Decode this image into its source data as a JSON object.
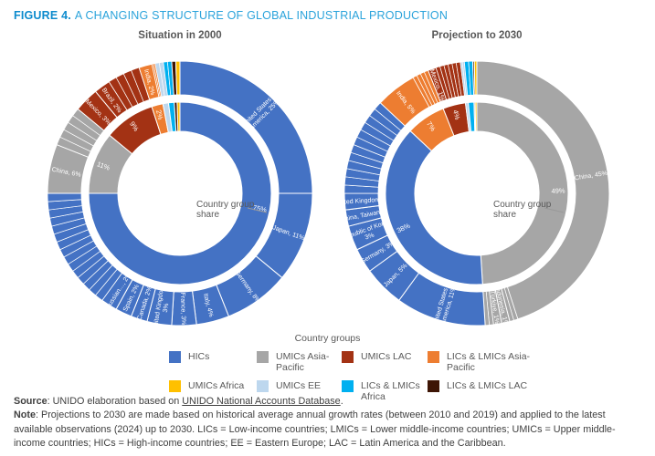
{
  "title": {
    "prefix": "FIGURE 4.",
    "rest": "A CHANGING STRUCTURE OF GLOBAL INDUSTRIAL PRODUCTION"
  },
  "colors": {
    "hic": "#4472C4",
    "umics_ap": "#A6A6A6",
    "umics_lac": "#A33214",
    "lics_lmics_ap": "#ED7D31",
    "umics_africa": "#FFC000",
    "umics_ee": "#BDD7EE",
    "lics_lmics_africa": "#00B0F0",
    "lics_lmics_lac": "#3E1505"
  },
  "chart_data": [
    {
      "type": "donut",
      "title": "Situation in 2000",
      "center_label_lines": [
        "Country group",
        "share"
      ],
      "inner": [
        {
          "group": "HICs",
          "value": 75,
          "color_key": "hic",
          "label": "75%",
          "label_angle": 28
        },
        {
          "group": "UMICs Asia-Pacific",
          "value": 11,
          "color_key": "umics_ap",
          "label": "11%"
        },
        {
          "group": "UMICs LAC",
          "value": 9,
          "color_key": "umics_lac",
          "label": "9%"
        },
        {
          "group": "LICs & LMICs Asia-Pacific",
          "value": 2,
          "color_key": "lics_lmics_ap",
          "label": "2%"
        },
        {
          "group": "UMICs EE",
          "value": 1,
          "color_key": "umics_ee"
        },
        {
          "group": "LICs & LMICs Africa",
          "value": 1,
          "color_key": "lics_lmics_africa"
        },
        {
          "group": "LICs & LMICs LAC",
          "value": 0.5,
          "color_key": "lics_lmics_lac"
        },
        {
          "group": "UMICs Africa",
          "value": 0.5,
          "color_key": "umics_africa"
        }
      ],
      "outer": [
        {
          "name": "United States of America",
          "value": 25,
          "color_key": "hic",
          "label": "United States of\nAmerica, 25%"
        },
        {
          "name": "Japan",
          "value": 11,
          "color_key": "hic",
          "label": "Japan, 11%"
        },
        {
          "name": "Germany",
          "value": 8,
          "color_key": "hic",
          "label": "Germany, 8%"
        },
        {
          "name": "Italy",
          "value": 4,
          "color_key": "hic",
          "label": "Italy, 4%"
        },
        {
          "name": "France",
          "value": 3,
          "color_key": "hic",
          "label": "France, 3%"
        },
        {
          "name": "United Kingdom",
          "value": 3,
          "color_key": "hic",
          "label": "United Kingdom,\n3%"
        },
        {
          "name": "Canada",
          "value": 2,
          "color_key": "hic",
          "label": "Canada, 2%"
        },
        {
          "name": "Spain",
          "value": 2,
          "color_key": "hic",
          "label": "Spain, 2%"
        },
        {
          "name": "Russian Federation",
          "value": 2,
          "color_key": "hic",
          "label": "Russian…, 2%"
        },
        {
          "name": "Other HICs",
          "value": 15,
          "color_key": "hic",
          "thin": 15
        },
        {
          "name": "China",
          "value": 6,
          "color_key": "umics_ap",
          "label": "China, 6%"
        },
        {
          "name": "Other UMICs Asia-Pacific",
          "value": 5,
          "color_key": "umics_ap",
          "thin": 5
        },
        {
          "name": "Mexico",
          "value": 3,
          "color_key": "umics_lac",
          "label": "Mexico, 3%"
        },
        {
          "name": "Brazil",
          "value": 2,
          "color_key": "umics_lac",
          "label": "Brazil, 2%"
        },
        {
          "name": "Other UMICs LAC",
          "value": 4,
          "color_key": "umics_lac",
          "thin": 4
        },
        {
          "name": "India",
          "value": 1.6,
          "color_key": "lics_lmics_ap",
          "label": "India, 2%"
        },
        {
          "name": "Other LICs & LMICs Asia-Pacific",
          "value": 0.4,
          "color_key": "lics_lmics_ap",
          "thin": 2
        },
        {
          "name": "UMICs EE",
          "value": 1,
          "color_key": "umics_ee",
          "thin": 2
        },
        {
          "name": "LICs & LMICs Africa",
          "value": 1,
          "color_key": "lics_lmics_africa",
          "thin": 2
        },
        {
          "name": "LICs & LMICs LAC",
          "value": 0.5,
          "color_key": "lics_lmics_lac"
        },
        {
          "name": "UMICs Africa",
          "value": 0.5,
          "color_key": "umics_africa"
        }
      ]
    },
    {
      "type": "donut",
      "title": "Projection to 2030",
      "center_label_lines": [
        "Country group",
        "share"
      ],
      "inner": [
        {
          "group": "UMICs Asia-Pacific",
          "value": 49,
          "color_key": "umics_ap",
          "label": "49%"
        },
        {
          "group": "HICs",
          "value": 38,
          "color_key": "hic",
          "label": "38%"
        },
        {
          "group": "LICs & LMICs Asia-Pacific",
          "value": 7,
          "color_key": "lics_lmics_ap",
          "label": "7%"
        },
        {
          "group": "UMICs LAC",
          "value": 4,
          "color_key": "umics_lac",
          "label": "4%"
        },
        {
          "group": "UMICs EE",
          "value": 0.5,
          "color_key": "umics_ee"
        },
        {
          "group": "LICs & LMICs Africa",
          "value": 1,
          "color_key": "lics_lmics_africa"
        },
        {
          "group": "LICs & LMICs LAC",
          "value": 0.2,
          "color_key": "lics_lmics_lac"
        },
        {
          "group": "UMICs Africa",
          "value": 0.3,
          "color_key": "umics_africa"
        }
      ],
      "outer": [
        {
          "name": "China",
          "value": 45,
          "color_key": "umics_ap",
          "label": "China, 45%"
        },
        {
          "name": "Other UMICs Asia-Pacific",
          "value": 1,
          "color_key": "umics_ap",
          "thin": 2
        },
        {
          "name": "Indonesia",
          "value": 1,
          "color_key": "umics_ap",
          "label": "Indonesia, 1%"
        },
        {
          "name": "Türkiye",
          "value": 1,
          "color_key": "umics_ap",
          "label": "Türkiye, 1%"
        },
        {
          "name": "Other UMICs Asia-Pacific 2",
          "value": 1,
          "color_key": "umics_ap",
          "thin": 2
        },
        {
          "name": "United States of America",
          "value": 11,
          "color_key": "hic",
          "label": "United States of\nAmerica, 11%"
        },
        {
          "name": "Japan",
          "value": 5,
          "color_key": "hic",
          "label": "Japan, 5%"
        },
        {
          "name": "Germany",
          "value": 3,
          "color_key": "hic",
          "label": "Germany, 3%"
        },
        {
          "name": "Republic of Korea",
          "value": 3,
          "color_key": "hic",
          "label": "Republic of Korea,\n3%"
        },
        {
          "name": "China, Taiwan Province",
          "value": 2,
          "color_key": "hic",
          "label": "China, Taiwan…"
        },
        {
          "name": "United Kingdom",
          "value": 2,
          "color_key": "hic",
          "label": "United Kingdom,…"
        },
        {
          "name": "Other HICs",
          "value": 12,
          "color_key": "hic",
          "thin": 12
        },
        {
          "name": "India",
          "value": 5,
          "color_key": "lics_lmics_ap",
          "label": "India, 5%"
        },
        {
          "name": "Other LICs & LMICs Asia-Pacific",
          "value": 2,
          "color_key": "lics_lmics_ap",
          "thin": 4
        },
        {
          "name": "Mexico",
          "value": 1,
          "color_key": "umics_lac",
          "label": "Mexico, 1%"
        },
        {
          "name": "Other UMICs LAC",
          "value": 3,
          "color_key": "umics_lac",
          "thin": 6
        },
        {
          "name": "UMICs EE",
          "value": 0.5,
          "color_key": "umics_ee",
          "thin": 2
        },
        {
          "name": "LICs & LMICs Africa",
          "value": 1,
          "color_key": "lics_lmics_africa",
          "thin": 2
        },
        {
          "name": "LICs & LMICs LAC",
          "value": 0.2,
          "color_key": "lics_lmics_lac"
        },
        {
          "name": "UMICs Africa",
          "value": 0.3,
          "color_key": "umics_africa"
        }
      ]
    }
  ],
  "legend": {
    "title": "Country groups",
    "items": [
      {
        "label": "HICs",
        "color_key": "hic"
      },
      {
        "label": "UMICs Asia-Pacific",
        "color_key": "umics_ap"
      },
      {
        "label": "UMICs LAC",
        "color_key": "umics_lac"
      },
      {
        "label": "LICs & LMICs Asia-Pacific",
        "color_key": "lics_lmics_ap"
      },
      {
        "label": "UMICs Africa",
        "color_key": "umics_africa"
      },
      {
        "label": "UMICs EE",
        "color_key": "umics_ee"
      },
      {
        "label": "LICs & LMICs Africa",
        "color_key": "lics_lmics_africa"
      },
      {
        "label": "LICs & LMICs LAC",
        "color_key": "lics_lmics_lac"
      }
    ]
  },
  "footer": {
    "source_label": "Source",
    "source_text": ": UNIDO elaboration based on ",
    "source_link": "UNIDO National Accounts Database",
    "source_end": ".",
    "note_label": "Note",
    "note_text": ": Projections to 2030 are made based on historical average annual growth rates (between 2010 and 2019) and applied to the latest available observations (2024) up to 2030. LICs = Low-income countries; LMICs = Lower middle-income countries; UMICs = Upper middle-income countries; HICs = High-income countries; EE = Eastern Europe; LAC = Latin America and the Caribbean."
  }
}
